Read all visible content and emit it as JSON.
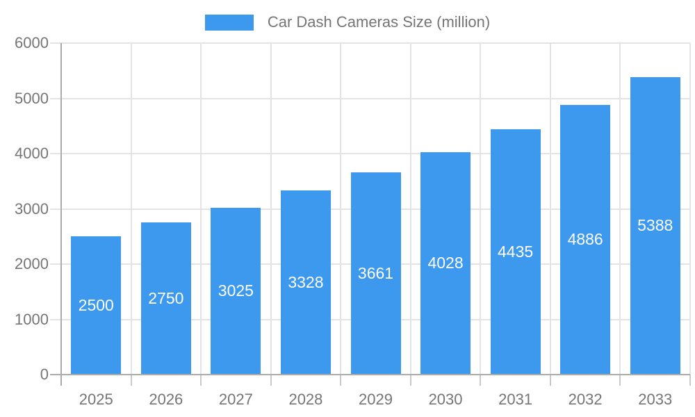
{
  "chart_data": {
    "type": "bar",
    "title": "Car Dash Cameras Size (million)",
    "categories": [
      "2025",
      "2026",
      "2027",
      "2028",
      "2029",
      "2030",
      "2031",
      "2032",
      "2033"
    ],
    "values": [
      2500,
      2750,
      3025,
      3328,
      3661,
      4028,
      4435,
      4886,
      5388
    ],
    "series": [
      {
        "name": "Car Dash Cameras Size (million)",
        "values": [
          2500,
          2750,
          3025,
          3328,
          3661,
          4028,
          4435,
          4886,
          5388
        ]
      }
    ],
    "xlabel": "",
    "ylabel": "",
    "ylim": [
      0,
      6000
    ],
    "ytick_step": 1000,
    "ytick_labels": [
      "0",
      "1000",
      "2000",
      "3000",
      "4000",
      "5000",
      "6000"
    ],
    "grid": true,
    "legend_position": "top",
    "value_label_position": "inside-center"
  },
  "colors": {
    "bar": "#3C99EE",
    "axis": "#ABABAB",
    "gridline": "#E3E3E3",
    "boundary_tick": "#C9C9C9",
    "label_text": "#757575",
    "value_label_text": "#FFFFFF",
    "background": "#FFFFFF"
  }
}
